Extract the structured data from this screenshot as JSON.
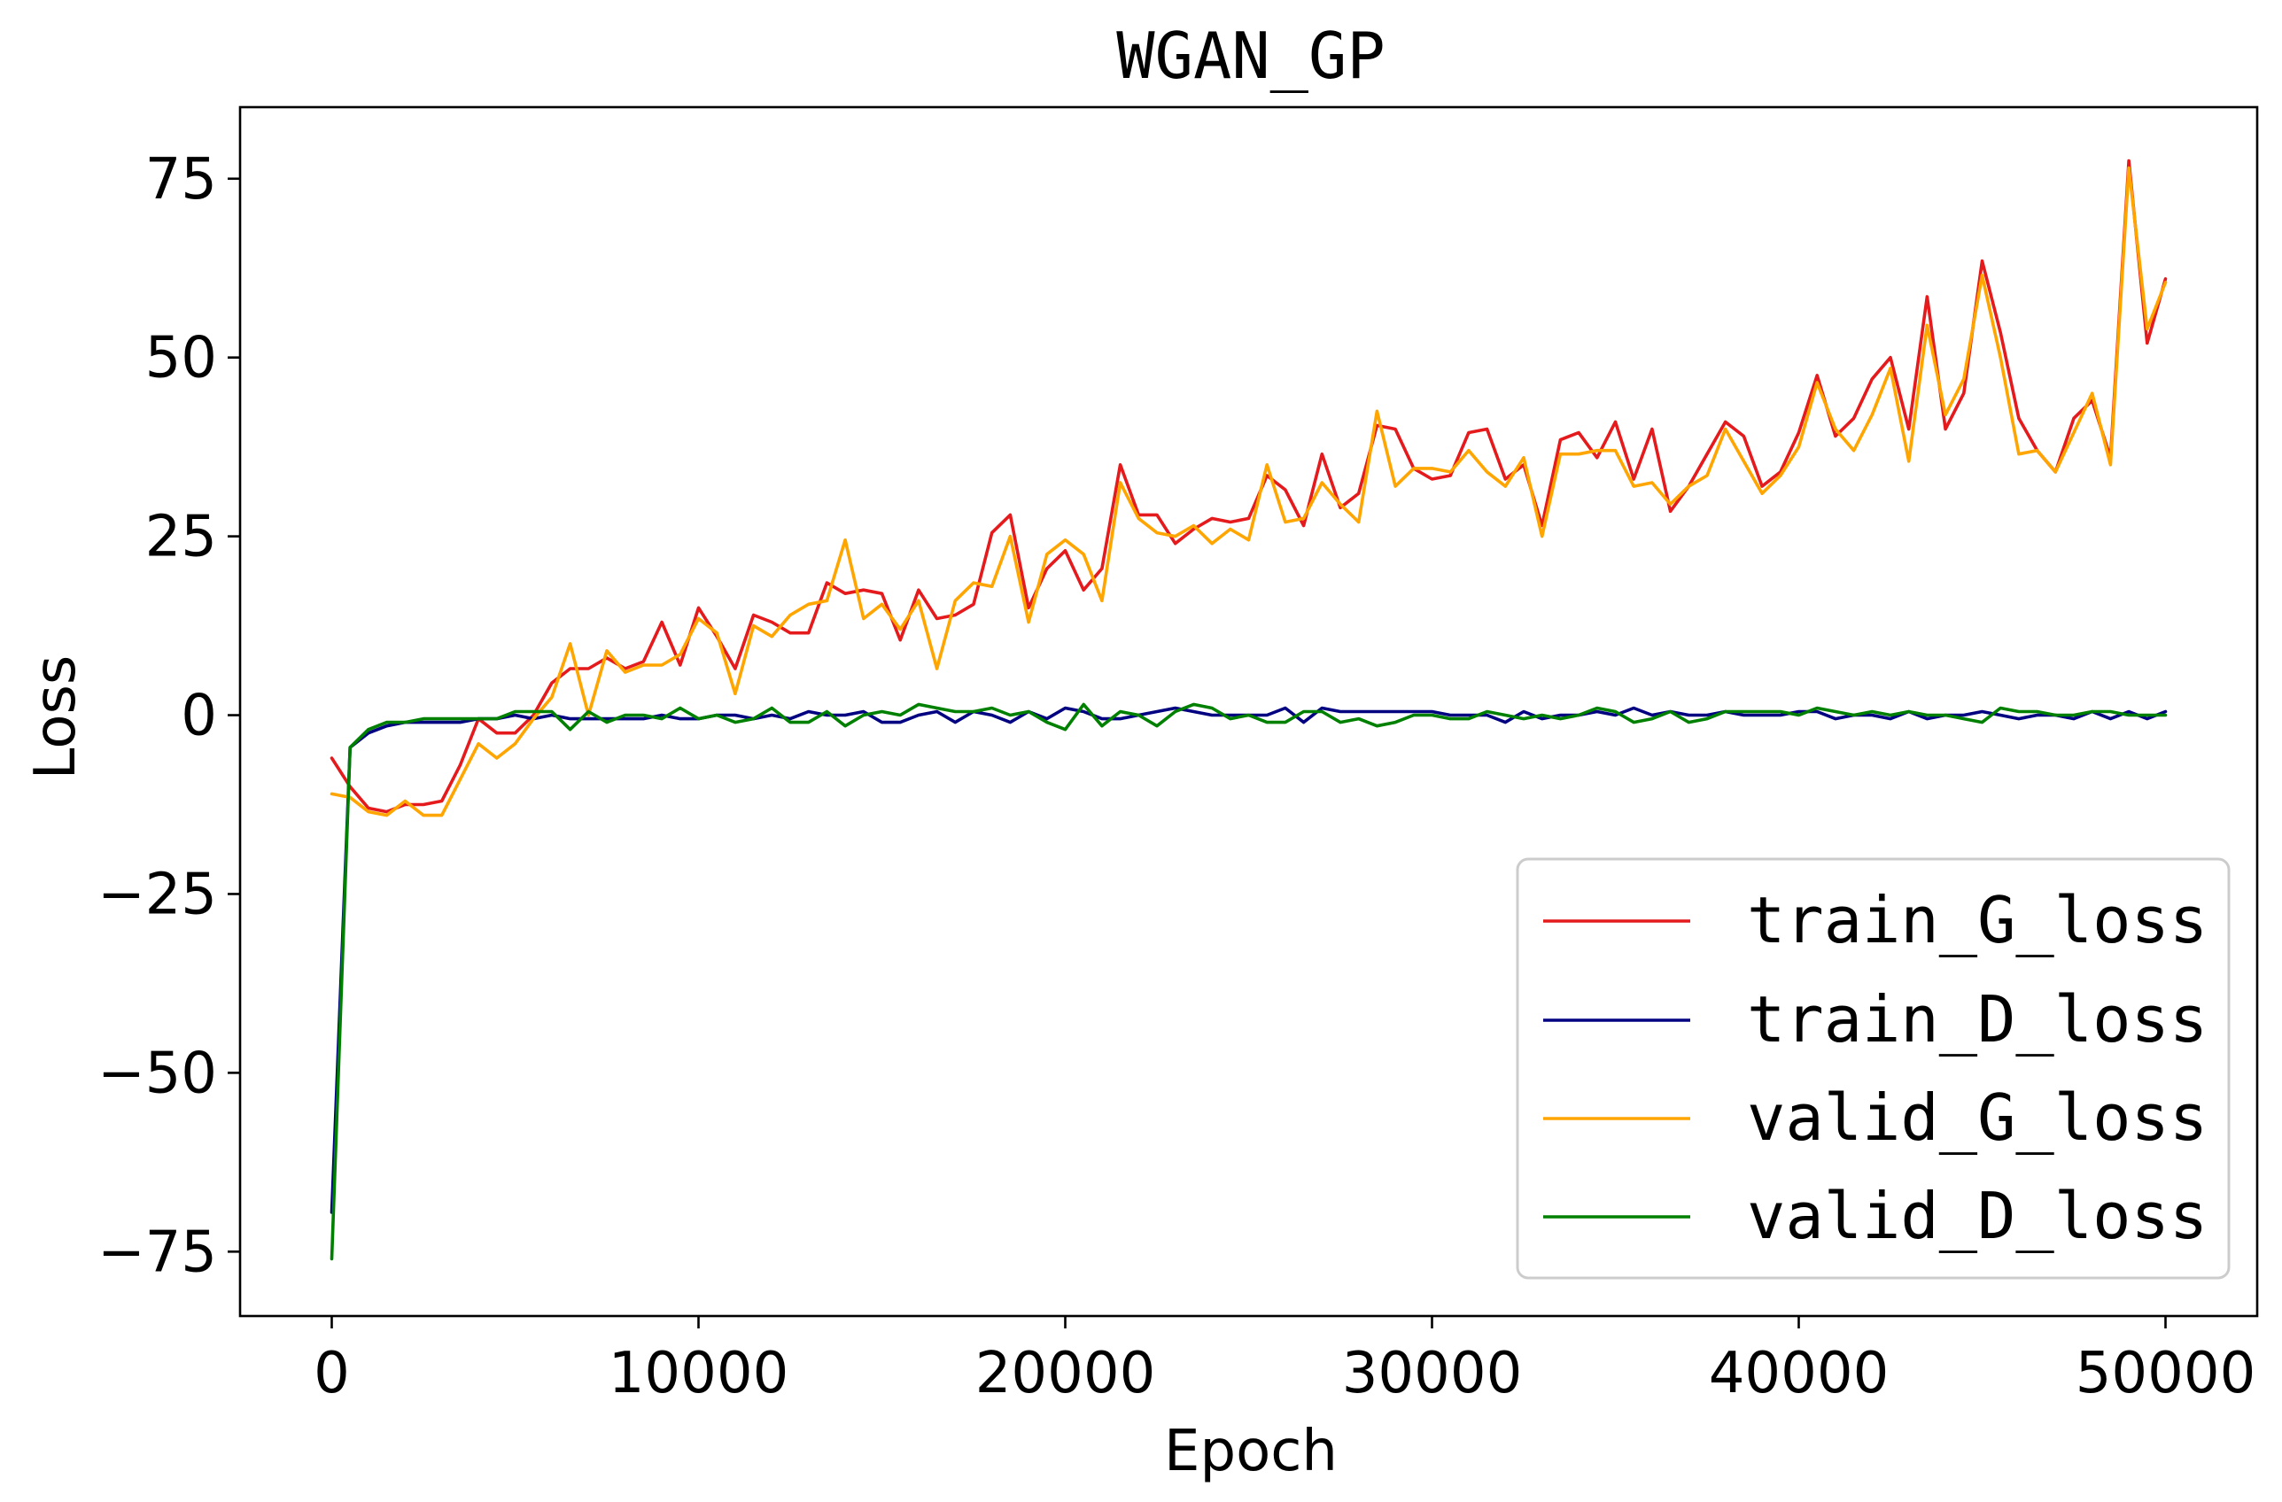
{
  "chart_data": {
    "type": "line",
    "title": "WGAN_GP",
    "xlabel": "Epoch",
    "ylabel": "Loss",
    "xlim": [
      -2500,
      52500
    ],
    "ylim": [
      -84,
      85
    ],
    "xticks": [
      0,
      10000,
      20000,
      30000,
      40000,
      50000
    ],
    "xtick_labels": [
      "0",
      "10000",
      "20000",
      "30000",
      "40000",
      "50000"
    ],
    "yticks": [
      -75,
      -50,
      -25,
      0,
      25,
      50,
      75
    ],
    "ytick_labels": [
      "−75",
      "−50",
      "−25",
      "0",
      "25",
      "50",
      "75"
    ],
    "grid": false,
    "legend_position": "lower-right",
    "x": [
      0,
      500,
      1000,
      1500,
      2000,
      2500,
      3000,
      3500,
      4000,
      4500,
      5000,
      5500,
      6000,
      6500,
      7000,
      7500,
      8000,
      8500,
      9000,
      9500,
      10000,
      10500,
      11000,
      11500,
      12000,
      12500,
      13000,
      13500,
      14000,
      14500,
      15000,
      15500,
      16000,
      16500,
      17000,
      17500,
      18000,
      18500,
      19000,
      19500,
      20000,
      20500,
      21000,
      21500,
      22000,
      22500,
      23000,
      23500,
      24000,
      24500,
      25000,
      25500,
      26000,
      26500,
      27000,
      27500,
      28000,
      28500,
      29000,
      29500,
      30000,
      30500,
      31000,
      31500,
      32000,
      32500,
      33000,
      33500,
      34000,
      34500,
      35000,
      35500,
      36000,
      36500,
      37000,
      37500,
      38000,
      38500,
      39000,
      39500,
      40000,
      40500,
      41000,
      41500,
      42000,
      42500,
      43000,
      43500,
      44000,
      44500,
      45000,
      45500,
      46000,
      46500,
      47000,
      47500,
      48000,
      48500,
      49000,
      49500,
      50000
    ],
    "series": [
      {
        "name": "train_G_loss",
        "color": "#e41a1c",
        "values": [
          -6,
          -10,
          -13,
          -13.5,
          -12.5,
          -12.5,
          -12,
          -7,
          -0.5,
          -2.5,
          -2.5,
          0,
          4.5,
          6.5,
          6.5,
          8,
          6.5,
          7.5,
          13,
          7,
          15,
          11,
          6.5,
          14,
          13,
          11.5,
          11.5,
          18.5,
          17,
          17.5,
          17,
          10.5,
          17.5,
          13.5,
          14,
          15.5,
          25.5,
          28,
          15,
          20.5,
          23,
          17.5,
          20.5,
          35,
          28,
          28,
          24,
          26,
          27.5,
          27,
          27.5,
          33.5,
          31.5,
          26.5,
          36.5,
          29,
          31,
          40.5,
          40,
          34.5,
          33,
          33.5,
          39.5,
          40,
          33,
          35,
          26.5,
          38.5,
          39.5,
          36,
          41,
          33,
          40,
          28.5,
          32,
          36.5,
          41,
          39,
          32,
          34,
          39.5,
          47.5,
          39,
          41.5,
          47,
          50,
          40,
          58.5,
          40,
          45,
          63.5,
          53.5,
          41.5,
          37,
          34,
          41.5,
          44,
          36,
          77.5,
          52,
          61
        ]
      },
      {
        "name": "train_D_loss",
        "color": "#000080",
        "values": [
          -69.5,
          -4.5,
          -2.5,
          -1.5,
          -1,
          -1,
          -1,
          -1,
          -0.5,
          -0.5,
          0,
          -0.5,
          0,
          -0.5,
          -0.5,
          -0.5,
          -0.5,
          -0.5,
          0,
          -0.5,
          -0.5,
          0,
          0,
          -0.5,
          0,
          -0.5,
          0.5,
          0,
          0,
          0.5,
          -1,
          -1,
          0,
          0.5,
          -1,
          0.5,
          0,
          -1,
          0.5,
          -0.5,
          1,
          0.5,
          -0.5,
          -0.5,
          0,
          0.5,
          1,
          0.5,
          0,
          0,
          0,
          0,
          1,
          -1,
          1,
          0.5,
          0.5,
          0.5,
          0.5,
          0.5,
          0.5,
          0,
          0,
          0,
          -1,
          0.5,
          -0.5,
          0,
          0,
          0.5,
          0,
          1,
          0,
          0.5,
          0,
          0,
          0.5,
          0,
          0,
          0,
          0.5,
          0.5,
          -0.5,
          0,
          0,
          -0.5,
          0.5,
          -0.5,
          0,
          0,
          0.5,
          0,
          -0.5,
          0,
          0,
          -0.5,
          0.5,
          -0.5,
          0.5,
          -0.5,
          0.5
        ]
      },
      {
        "name": "valid_G_loss",
        "color": "#ffa500",
        "values": [
          -11,
          -11.5,
          -13.5,
          -14,
          -12,
          -14,
          -14,
          -9,
          -4,
          -6,
          -4,
          -0.5,
          2.5,
          10,
          0,
          9,
          6,
          7,
          7,
          8.5,
          13.5,
          11.5,
          3,
          12.5,
          11,
          14,
          15.5,
          16,
          24.5,
          13.5,
          15.5,
          12,
          16,
          6.5,
          16,
          18.5,
          18,
          25,
          13,
          22.5,
          24.5,
          22.5,
          16,
          32.5,
          27.5,
          25.5,
          25,
          26.5,
          24,
          26,
          24.5,
          35,
          27,
          27.5,
          32.5,
          29.5,
          27,
          42.5,
          32,
          34.5,
          34.5,
          34,
          37,
          34,
          32,
          36,
          25,
          36.5,
          36.5,
          37,
          37,
          32,
          32.5,
          29.5,
          32,
          33.5,
          40,
          35.5,
          31,
          33.5,
          37.5,
          46.5,
          40,
          37,
          42,
          48.5,
          35.5,
          54.5,
          42,
          47,
          61.5,
          50,
          36.5,
          37,
          34,
          39.5,
          45,
          35,
          76.5,
          54,
          60.5
        ]
      },
      {
        "name": "valid_D_loss",
        "color": "#008000",
        "values": [
          -76,
          -4.5,
          -2,
          -1,
          -1,
          -0.5,
          -0.5,
          -0.5,
          -0.5,
          -0.5,
          0.5,
          0.5,
          0.5,
          -2,
          0.5,
          -1,
          0,
          0,
          -0.5,
          1,
          -0.5,
          0,
          -1,
          -0.5,
          1,
          -1,
          -1,
          0.5,
          -1.5,
          0,
          0.5,
          0,
          1.5,
          1,
          0.5,
          0.5,
          1,
          0,
          0.5,
          -1,
          -2,
          1.5,
          -1.5,
          0.5,
          0,
          -1.5,
          0.5,
          1.5,
          1,
          -0.5,
          0,
          -1,
          -1,
          0.5,
          0.5,
          -1,
          -0.5,
          -1.5,
          -1,
          0,
          0,
          -0.5,
          -0.5,
          0.5,
          0,
          -0.5,
          0,
          -0.5,
          0,
          1,
          0.5,
          -1,
          -0.5,
          0.5,
          -1,
          -0.5,
          0.5,
          0.5,
          0.5,
          0.5,
          0,
          1,
          0.5,
          0,
          0.5,
          0,
          0.5,
          0,
          0,
          -0.5,
          -1,
          1,
          0.5,
          0.5,
          0,
          0,
          0.5,
          0.5,
          0,
          0,
          0
        ]
      }
    ]
  }
}
